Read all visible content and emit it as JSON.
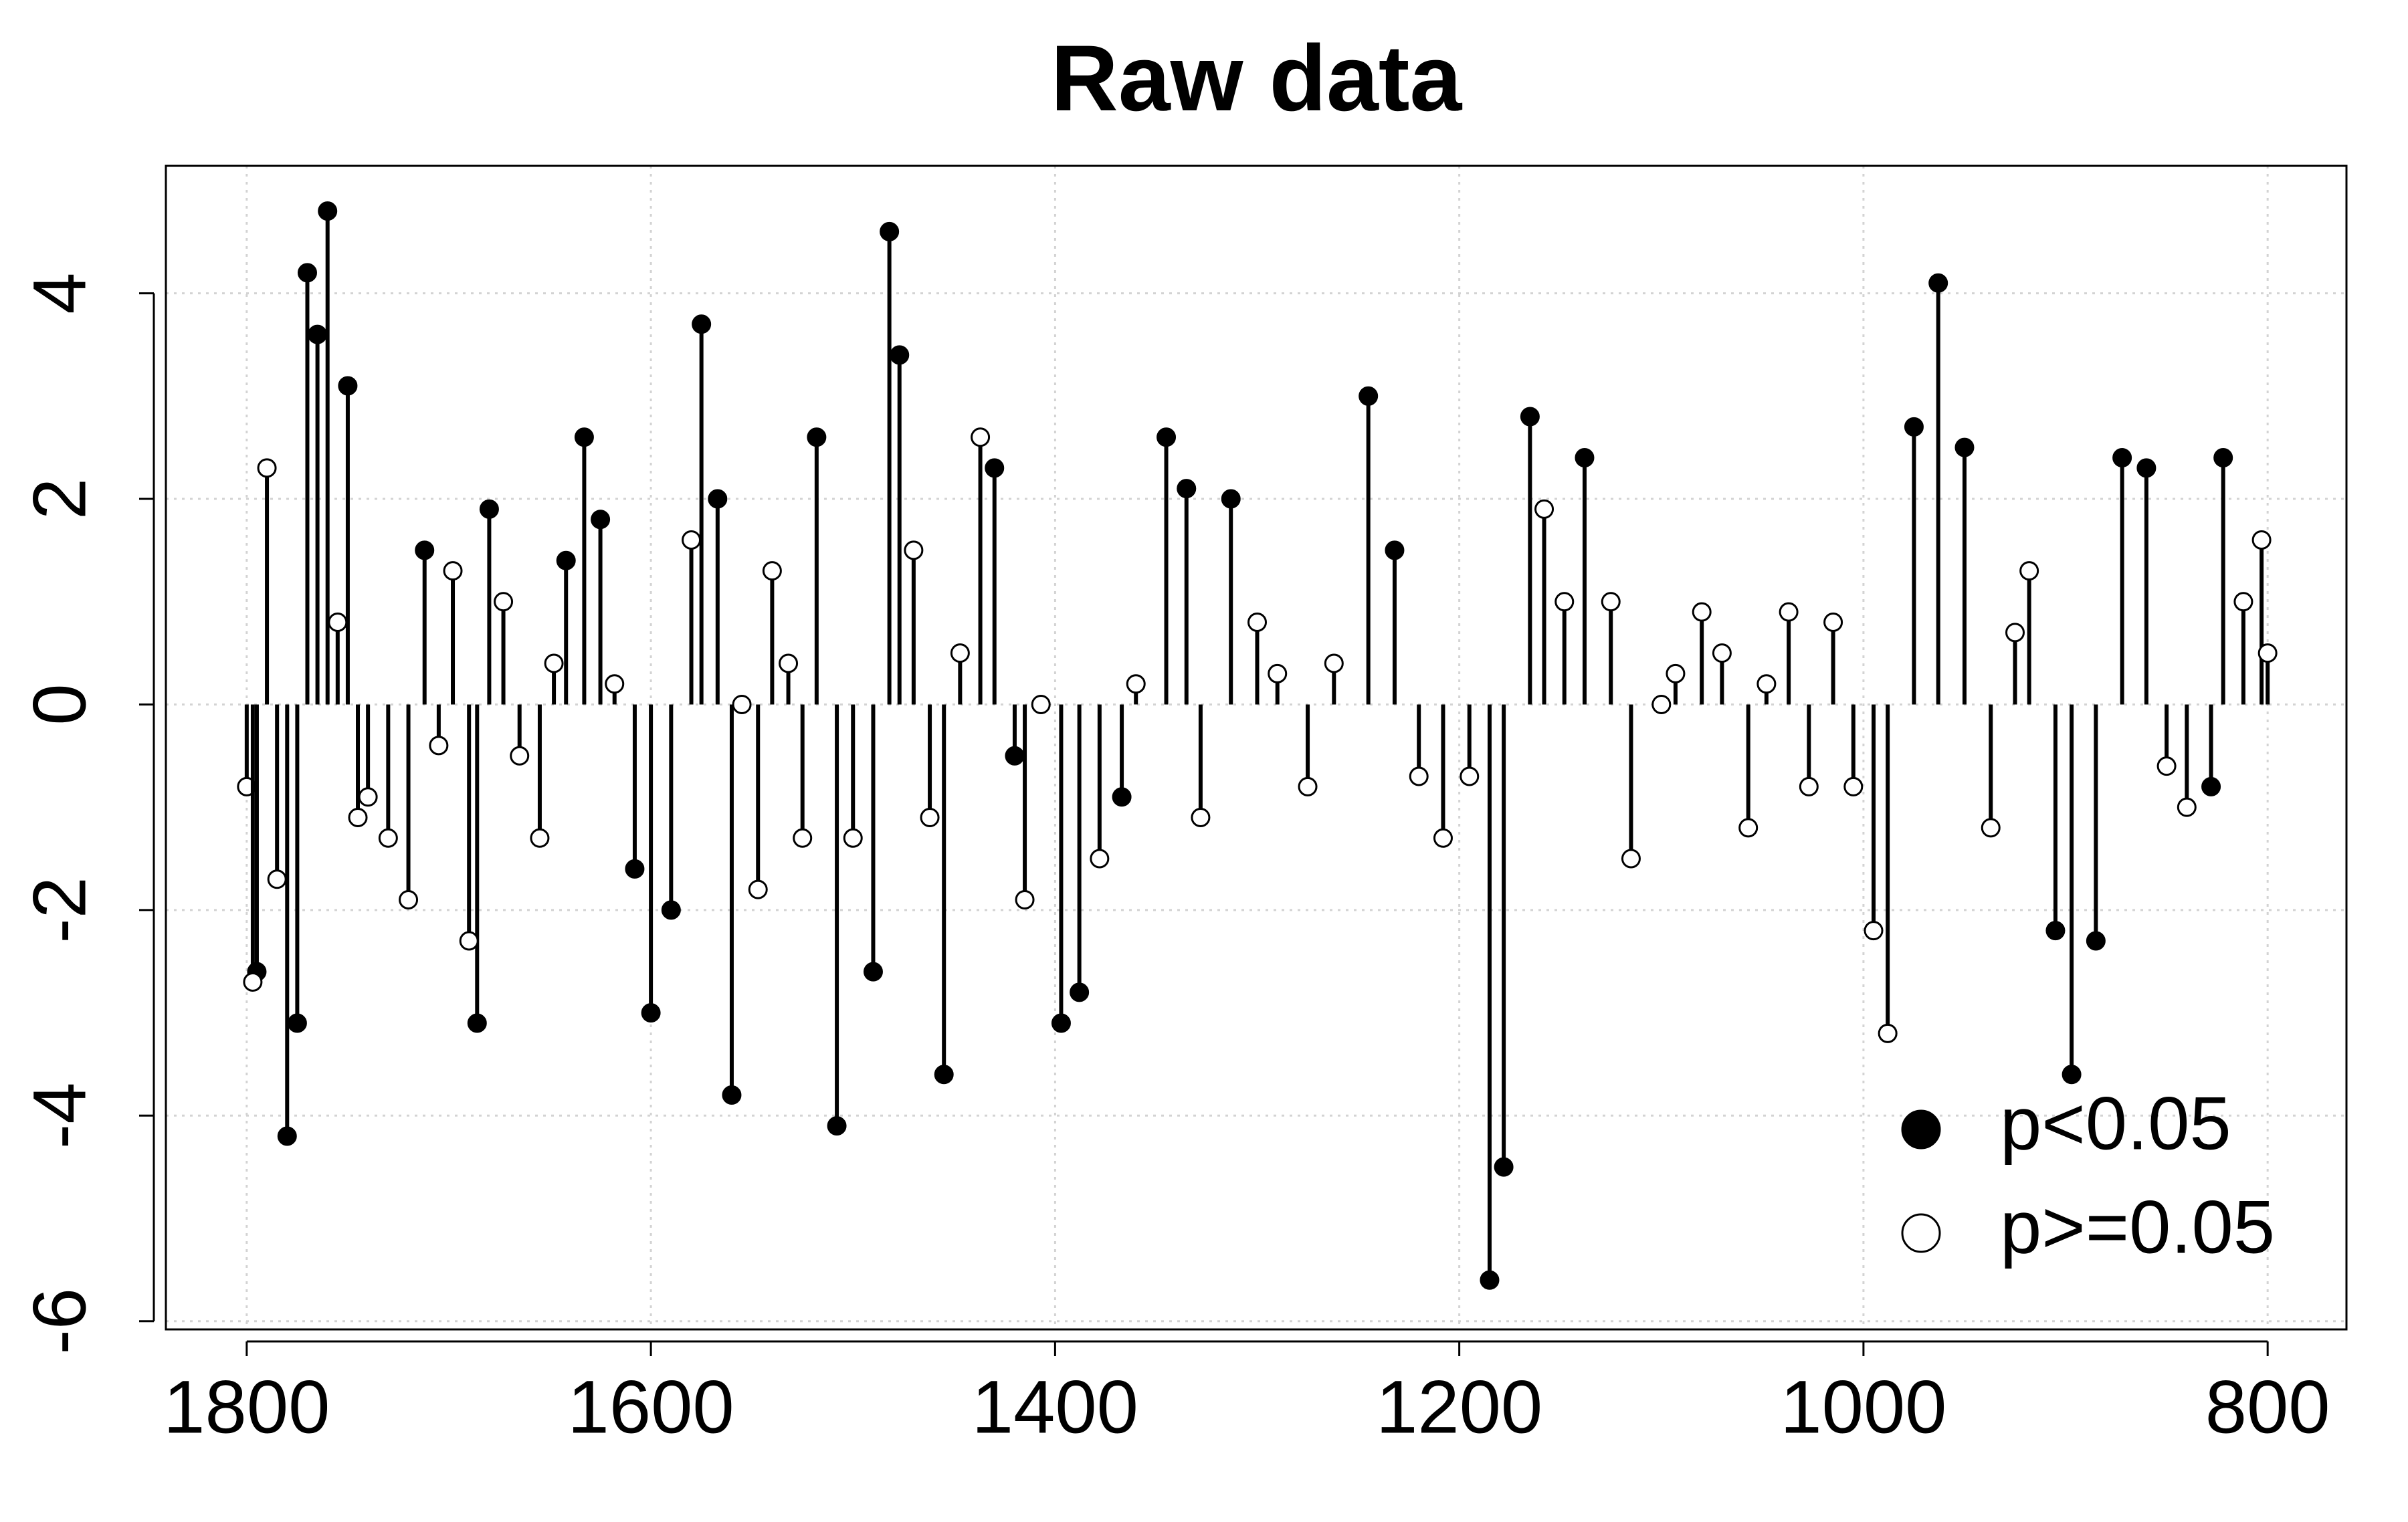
{
  "chart_data": {
    "type": "stem",
    "title": "Raw data",
    "xlim": [
      1840,
      761
    ],
    "xticks": [
      1800,
      1600,
      1400,
      1200,
      1000,
      800
    ],
    "ylim": [
      -6.08,
      5.24
    ],
    "yticks": [
      -6,
      -4,
      -2,
      0,
      2,
      4
    ],
    "grid": true,
    "legend": "bottom-right",
    "series": [
      {
        "name": "p<0.05",
        "color": "#000000",
        "filled": true,
        "x": [
          1795,
          1780,
          1775,
          1770,
          1765,
          1760,
          1750,
          1712,
          1686,
          1680,
          1642,
          1633,
          1625,
          1608,
          1600,
          1590,
          1575,
          1567,
          1560,
          1518,
          1508,
          1490,
          1482,
          1477,
          1455,
          1430,
          1420,
          1397,
          1388,
          1367,
          1345,
          1335,
          1313,
          1245,
          1232,
          1185,
          1178,
          1165,
          1138,
          975,
          963,
          950,
          905,
          897,
          885,
          872,
          860,
          828,
          822
        ],
        "values": [
          -2.6,
          -4.2,
          -3.1,
          4.2,
          3.6,
          4.8,
          3.1,
          1.5,
          -3.1,
          1.9,
          1.4,
          2.6,
          1.8,
          -1.6,
          -3.0,
          -2.0,
          3.7,
          2.0,
          -3.8,
          2.6,
          -4.1,
          -2.6,
          4.6,
          3.4,
          -3.6,
          2.3,
          -0.5,
          -3.1,
          -2.8,
          -0.9,
          2.6,
          2.1,
          2.0,
          3.0,
          1.5,
          -5.6,
          -4.5,
          2.8,
          2.4,
          2.7,
          4.1,
          2.5,
          -2.2,
          -3.6,
          -2.3,
          2.4,
          2.3,
          -0.8,
          2.4
        ]
      },
      {
        "name": "p>=0.05",
        "color": "#000000",
        "filled": false,
        "x": [
          1800,
          1797,
          1790,
          1785,
          1755,
          1745,
          1740,
          1730,
          1720,
          1705,
          1698,
          1690,
          1673,
          1665,
          1655,
          1648,
          1618,
          1580,
          1555,
          1547,
          1540,
          1532,
          1525,
          1500,
          1470,
          1462,
          1447,
          1437,
          1415,
          1407,
          1378,
          1360,
          1328,
          1300,
          1290,
          1275,
          1262,
          1220,
          1208,
          1195,
          1158,
          1148,
          1125,
          1115,
          1100,
          1093,
          1080,
          1070,
          1057,
          1048,
          1037,
          1027,
          1015,
          1005,
          995,
          988,
          937,
          925,
          918,
          850,
          840,
          812,
          803,
          800
        ],
        "values": [
          -0.8,
          -2.7,
          2.3,
          -1.7,
          0.8,
          -1.1,
          -0.9,
          -1.3,
          -1.9,
          -0.4,
          1.3,
          -2.3,
          1.0,
          -0.5,
          -1.3,
          0.4,
          0.2,
          1.6,
          0.0,
          -1.8,
          1.3,
          0.4,
          -1.3,
          -1.3,
          1.5,
          -1.1,
          0.5,
          2.6,
          -1.9,
          0.0,
          -1.5,
          0.2,
          -1.1,
          0.8,
          0.3,
          -0.8,
          0.4,
          -0.7,
          -1.3,
          -0.7,
          1.9,
          1.0,
          1.0,
          -1.5,
          0.0,
          0.3,
          0.9,
          0.5,
          -1.2,
          0.2,
          0.9,
          -0.8,
          0.8,
          -0.8,
          -2.2,
          -3.2,
          -1.2,
          0.7,
          1.3,
          -0.6,
          -1.0,
          1.0,
          1.6,
          0.5
        ]
      }
    ]
  }
}
